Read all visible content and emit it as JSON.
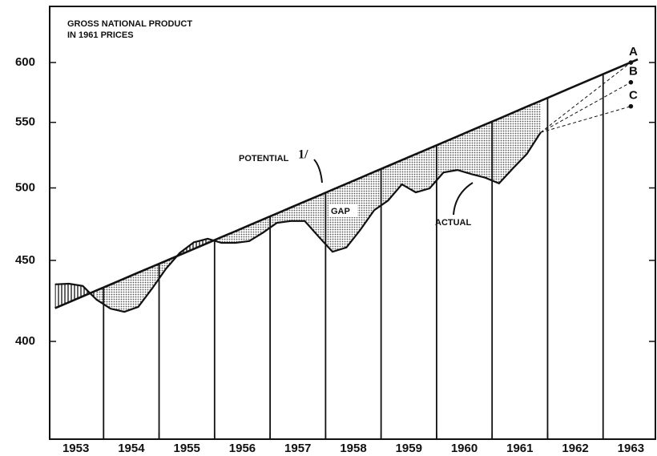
{
  "chart_data": {
    "type": "line",
    "title": [
      "GROSS NATIONAL PRODUCT",
      "IN 1961 PRICES"
    ],
    "categories": [
      "1953",
      "1954",
      "1955",
      "1956",
      "1957",
      "1958",
      "1959",
      "1960",
      "1961",
      "1962",
      "1963"
    ],
    "xlim": [
      1953,
      1964
    ],
    "ylim": [
      347,
      651
    ],
    "yticks": [
      400,
      450,
      500,
      550,
      600
    ],
    "log_scale": true,
    "color": "#111111",
    "series": [
      {
        "name": "POTENTIAL",
        "footnote": "1/",
        "x": [
          1953.125,
          1953.375,
          1953.625,
          1953.875,
          1954.125,
          1954.375,
          1954.625,
          1954.875,
          1955.125,
          1955.375,
          1955.625,
          1955.875,
          1956.125,
          1956.375,
          1956.625,
          1956.875,
          1957.125,
          1957.375,
          1957.625,
          1957.875,
          1958.125,
          1958.375,
          1958.625,
          1958.875,
          1959.125,
          1959.375,
          1959.625,
          1959.875,
          1960.125,
          1960.375,
          1960.625,
          1960.875,
          1961.125,
          1961.375,
          1961.625,
          1961.875,
          1962.125,
          1962.375,
          1962.625,
          1962.875,
          1963.125,
          1963.375,
          1963.625
        ],
        "values": [
          419.8,
          423.4,
          427.1,
          430.8,
          434.5,
          438.3,
          442.1,
          445.9,
          449.7,
          453.6,
          457.5,
          461.5,
          465.5,
          469.5,
          473.6,
          477.7,
          481.8,
          486.0,
          490.2,
          494.4,
          498.7,
          503.0,
          507.4,
          511.8,
          516.2,
          520.7,
          525.2,
          529.7,
          534.3,
          538.9,
          543.6,
          548.3,
          553.0,
          557.8,
          562.7,
          567.5,
          572.4,
          577.4,
          582.4,
          587.4,
          592.5,
          597.6,
          602.8
        ]
      },
      {
        "name": "ACTUAL",
        "x": [
          1953.125,
          1953.375,
          1953.625,
          1953.875,
          1954.125,
          1954.375,
          1954.625,
          1954.875,
          1955.125,
          1955.375,
          1955.625,
          1955.875,
          1956.125,
          1956.375,
          1956.625,
          1956.875,
          1957.125,
          1957.375,
          1957.625,
          1957.875,
          1958.125,
          1958.375,
          1958.625,
          1958.875,
          1959.125,
          1959.375,
          1959.625,
          1959.875,
          1960.125,
          1960.375,
          1960.625,
          1960.875,
          1961.125,
          1961.375,
          1961.625,
          1961.875
        ],
        "values": [
          434.6,
          435.0,
          433.6,
          425.0,
          419.5,
          417.6,
          420.6,
          432.0,
          444.6,
          455.0,
          462.0,
          464.4,
          461.6,
          461.6,
          462.8,
          468.6,
          475.3,
          476.5,
          476.5,
          465.8,
          455.7,
          458.5,
          470.4,
          484.0,
          490.9,
          502.6,
          496.8,
          499.7,
          511.4,
          513.2,
          510.2,
          507.5,
          503.3,
          514.4,
          525.3,
          542.0
        ]
      }
    ],
    "projection_x": 1963.5,
    "projections": [
      {
        "label": "A",
        "value": 600
      },
      {
        "label": "B",
        "value": 583
      },
      {
        "label": "C",
        "value": 563
      }
    ],
    "gap_label": "GAP"
  }
}
